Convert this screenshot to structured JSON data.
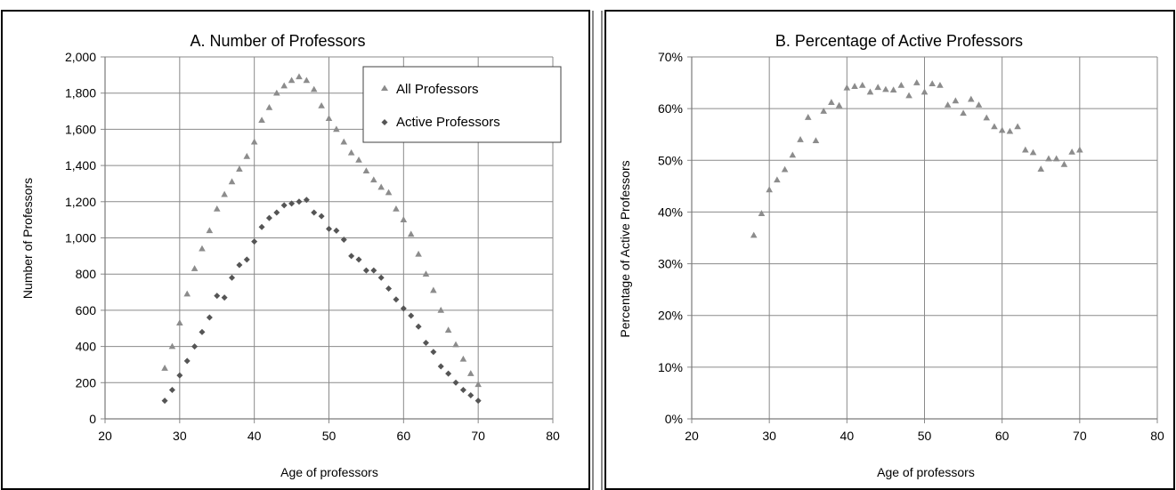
{
  "chart_data": [
    {
      "type": "scatter",
      "title": "A. Number of Professors",
      "xlabel": "Age of professors",
      "ylabel": "Number of Professors",
      "xlim": [
        20,
        80
      ],
      "ylim": [
        0,
        2000
      ],
      "xticks": [
        "20",
        "30",
        "40",
        "50",
        "60",
        "70",
        "80"
      ],
      "yticks": [
        "0",
        "200",
        "400",
        "600",
        "800",
        "1,000",
        "1,200",
        "1,400",
        "1,600",
        "1,800",
        "2,000"
      ],
      "grid": true,
      "legend_position": "top-right",
      "series": [
        {
          "name": "All Professors",
          "marker": "triangle",
          "color": "#8c8c8c",
          "x": [
            28,
            29,
            30,
            31,
            32,
            33,
            34,
            35,
            36,
            37,
            38,
            39,
            40,
            41,
            42,
            43,
            44,
            45,
            46,
            47,
            48,
            49,
            50,
            51,
            52,
            53,
            54,
            55,
            56,
            57,
            58,
            59,
            60,
            61,
            62,
            63,
            64,
            65,
            66,
            67,
            68,
            69,
            70
          ],
          "y": [
            280,
            400,
            530,
            690,
            830,
            940,
            1040,
            1160,
            1240,
            1310,
            1380,
            1450,
            1530,
            1650,
            1720,
            1800,
            1840,
            1870,
            1890,
            1870,
            1820,
            1730,
            1660,
            1600,
            1530,
            1470,
            1430,
            1370,
            1320,
            1280,
            1250,
            1160,
            1100,
            1020,
            910,
            800,
            710,
            600,
            490,
            410,
            330,
            250,
            190
          ]
        },
        {
          "name": "Active Professors",
          "marker": "diamond",
          "color": "#555555",
          "x": [
            28,
            29,
            30,
            31,
            32,
            33,
            34,
            35,
            36,
            37,
            38,
            39,
            40,
            41,
            42,
            43,
            44,
            45,
            46,
            47,
            48,
            49,
            50,
            51,
            52,
            53,
            54,
            55,
            56,
            57,
            58,
            59,
            60,
            61,
            62,
            63,
            64,
            65,
            66,
            67,
            68,
            69,
            70
          ],
          "y": [
            100,
            160,
            240,
            320,
            400,
            480,
            560,
            680,
            670,
            780,
            850,
            880,
            980,
            1060,
            1110,
            1140,
            1180,
            1190,
            1200,
            1210,
            1140,
            1120,
            1050,
            1040,
            990,
            900,
            880,
            820,
            820,
            780,
            720,
            660,
            610,
            570,
            510,
            420,
            370,
            290,
            250,
            200,
            160,
            130,
            100
          ]
        }
      ]
    },
    {
      "type": "scatter",
      "title": "B. Percentage of Active Professors",
      "xlabel": "Age of professors",
      "ylabel": "Percentage of Active Professors",
      "xlim": [
        20,
        80
      ],
      "ylim": [
        0,
        0.7
      ],
      "xticks": [
        "20",
        "30",
        "40",
        "50",
        "60",
        "70",
        "80"
      ],
      "yticks": [
        "0%",
        "10%",
        "20%",
        "30%",
        "40%",
        "50%",
        "60%",
        "70%"
      ],
      "grid": true,
      "series": [
        {
          "marker": "triangle",
          "color": "#8c8c8c",
          "x": [
            28,
            29,
            30,
            31,
            32,
            33,
            34,
            35,
            36,
            37,
            38,
            39,
            40,
            41,
            42,
            43,
            44,
            45,
            46,
            47,
            48,
            49,
            50,
            51,
            52,
            53,
            54,
            55,
            56,
            57,
            58,
            59,
            60,
            61,
            62,
            63,
            64,
            65,
            66,
            67,
            68,
            69,
            70
          ],
          "y": [
            0.355,
            0.397,
            0.443,
            0.462,
            0.482,
            0.51,
            0.54,
            0.583,
            0.538,
            0.595,
            0.612,
            0.606,
            0.64,
            0.643,
            0.645,
            0.632,
            0.641,
            0.637,
            0.636,
            0.645,
            0.625,
            0.65,
            0.632,
            0.648,
            0.645,
            0.607,
            0.615,
            0.591,
            0.618,
            0.607,
            0.582,
            0.565,
            0.558,
            0.556,
            0.565,
            0.52,
            0.515,
            0.483,
            0.503,
            0.503,
            0.492,
            0.516,
            0.52
          ]
        }
      ]
    }
  ]
}
